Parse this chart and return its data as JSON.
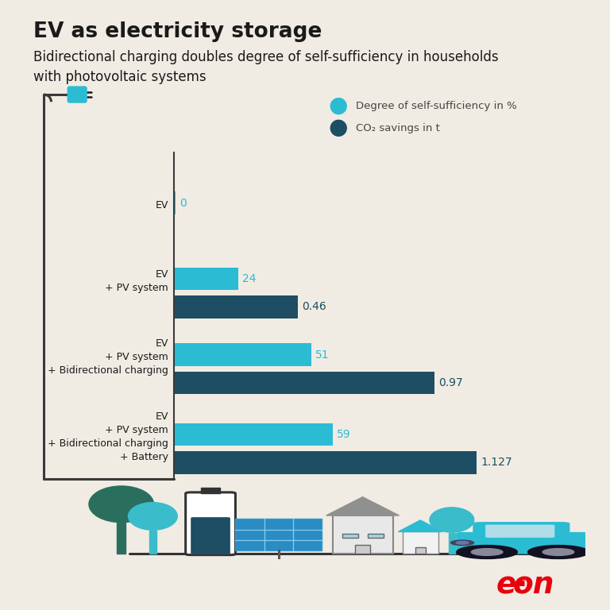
{
  "title": "EV as electricity storage",
  "subtitle": "Bidirectional charging doubles degree of self-sufficiency in households\nwith photovoltaic systems",
  "background_color": "#f0ece4",
  "title_fontsize": 19,
  "subtitle_fontsize": 12,
  "bar_groups": [
    {
      "label": "EV",
      "self_sufficiency": 0,
      "co2_savings": null
    },
    {
      "label": "EV\n+ PV system",
      "self_sufficiency": 24,
      "co2_savings": 0.46
    },
    {
      "label": "EV\n+ PV system\n+ Bidirectional charging",
      "self_sufficiency": 51,
      "co2_savings": 0.97
    },
    {
      "label": "EV\n+ PV system\n+ Bidirectional charging\n+ Battery",
      "self_sufficiency": 59,
      "co2_savings": 1.127
    }
  ],
  "color_teal_light": "#2bbcd4",
  "color_teal_dark": "#1d4e63",
  "legend_label_1": "Degree of self-sufficiency in %",
  "legend_label_2": "CO₂ savings in t",
  "eon_color": "#e8000d",
  "label_fontsize": 9,
  "value_fontsize": 10,
  "lamp_color": "#3a3a3a",
  "plug_color": "#2bbcd4"
}
